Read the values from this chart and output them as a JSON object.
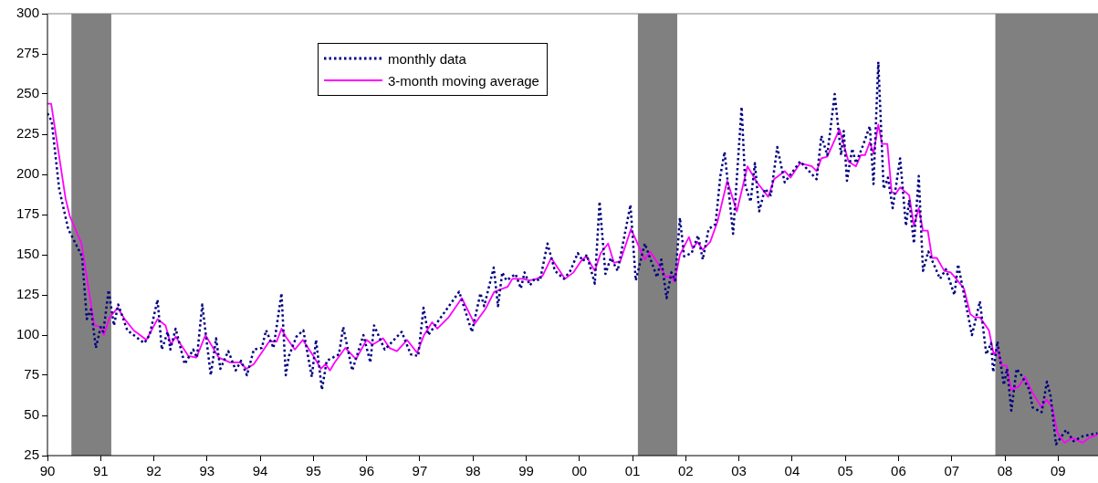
{
  "chart_data": {
    "type": "line",
    "xlim": [
      1990,
      2009.75
    ],
    "ylim": [
      25,
      300
    ],
    "xticks": [
      {
        "value": 1990,
        "label": "90"
      },
      {
        "value": 1991,
        "label": "91"
      },
      {
        "value": 1992,
        "label": "92"
      },
      {
        "value": 1993,
        "label": "93"
      },
      {
        "value": 1994,
        "label": "94"
      },
      {
        "value": 1995,
        "label": "95"
      },
      {
        "value": 1996,
        "label": "96"
      },
      {
        "value": 1997,
        "label": "97"
      },
      {
        "value": 1998,
        "label": "98"
      },
      {
        "value": 1999,
        "label": "99"
      },
      {
        "value": 2000,
        "label": "00"
      },
      {
        "value": 2001,
        "label": "01"
      },
      {
        "value": 2002,
        "label": "02"
      },
      {
        "value": 2003,
        "label": "03"
      },
      {
        "value": 2004,
        "label": "04"
      },
      {
        "value": 2005,
        "label": "05"
      },
      {
        "value": 2006,
        "label": "06"
      },
      {
        "value": 2007,
        "label": "07"
      },
      {
        "value": 2008,
        "label": "08"
      },
      {
        "value": 2009,
        "label": "09"
      }
    ],
    "yticks": [
      25,
      50,
      75,
      100,
      125,
      150,
      175,
      200,
      225,
      250,
      275,
      300
    ],
    "grid": false,
    "legend": "top",
    "marker": "none",
    "bands": [
      {
        "axis": "x",
        "from": 1990.45,
        "to": 1991.2,
        "color": "#808080"
      },
      {
        "axis": "x",
        "from": 2001.1,
        "to": 2001.84,
        "color": "#808080"
      },
      {
        "axis": "x",
        "from": 2007.82,
        "to": 2009.75,
        "color": "#808080"
      }
    ],
    "series": [
      {
        "name": "monthly data",
        "color": "#000080",
        "line_style": "dotted",
        "x": [
          1990.0,
          1990.08,
          1990.22,
          1990.39,
          1990.65,
          1990.74,
          1990.82,
          1990.91,
          1991.0,
          1991.05,
          1991.15,
          1991.25,
          1991.33,
          1991.5,
          1991.82,
          1991.92,
          1992.07,
          1992.15,
          1992.26,
          1992.31,
          1992.41,
          1992.58,
          1992.74,
          1992.81,
          1992.91,
          1993.07,
          1993.17,
          1993.25,
          1993.4,
          1993.54,
          1993.64,
          1993.75,
          1993.88,
          1994.03,
          1994.11,
          1994.25,
          1994.4,
          1994.48,
          1994.54,
          1994.68,
          1994.81,
          1994.97,
          1995.05,
          1995.16,
          1995.25,
          1995.48,
          1995.56,
          1995.73,
          1995.94,
          1996.07,
          1996.14,
          1996.34,
          1996.66,
          1996.83,
          1996.97,
          1997.07,
          1997.16,
          1997.46,
          1997.74,
          1997.98,
          1998.14,
          1998.21,
          1998.39,
          1998.47,
          1998.55,
          1998.63,
          1998.8,
          1998.9,
          1998.97,
          1999.07,
          1999.16,
          1999.26,
          1999.4,
          1999.54,
          1999.71,
          1999.83,
          1999.97,
          2000.07,
          2000.14,
          2000.29,
          2000.38,
          2000.49,
          2000.59,
          2000.72,
          2000.96,
          2001.06,
          2001.23,
          2001.46,
          2001.54,
          2001.64,
          2001.73,
          2001.8,
          2001.89,
          2001.97,
          2002.11,
          2002.23,
          2002.32,
          2002.43,
          2002.56,
          2002.65,
          2002.73,
          2002.89,
          2003.05,
          2003.12,
          2003.22,
          2003.3,
          2003.38,
          2003.49,
          2003.6,
          2003.72,
          2003.86,
          2004.15,
          2004.46,
          2004.55,
          2004.66,
          2004.8,
          2004.92,
          2004.97,
          2005.03,
          2005.13,
          2005.2,
          2005.32,
          2005.46,
          2005.53,
          2005.62,
          2005.72,
          2005.8,
          2005.89,
          2006.03,
          2006.14,
          2006.2,
          2006.29,
          2006.38,
          2006.46,
          2006.56,
          2006.78,
          2006.89,
          2007.05,
          2007.12,
          2007.38,
          2007.53,
          2007.65,
          2007.74,
          2007.78,
          2007.86,
          2007.98,
          2008.04,
          2008.12,
          2008.22,
          2008.31,
          2008.46,
          2008.52,
          2008.69,
          2008.79,
          2008.86,
          2008.96,
          2009.15,
          2009.29,
          2009.46,
          2009.74
        ],
        "values": [
          238,
          233,
          191,
          166,
          149,
          110,
          116,
          92,
          105,
          102,
          128,
          106,
          119,
          103,
          95,
          100,
          122,
          91,
          102,
          91,
          104,
          82,
          91,
          86,
          119,
          75,
          98,
          79,
          90,
          78,
          84,
          75,
          91,
          92,
          103,
          92,
          126,
          75,
          87,
          99,
          103,
          74,
          97,
          66,
          84,
          88,
          105,
          78,
          100,
          83,
          106,
          91,
          102,
          88,
          87,
          117,
          100,
          114,
          127,
          102,
          126,
          118,
          142,
          118,
          139,
          134,
          138,
          129,
          139,
          131,
          135,
          134,
          157,
          140,
          135,
          140,
          151,
          146,
          150,
          132,
          183,
          138,
          148,
          140,
          181,
          134,
          157,
          136,
          147,
          123,
          139,
          134,
          173,
          149,
          151,
          162,
          147,
          166,
          169,
          199,
          214,
          163,
          242,
          193,
          183,
          207,
          177,
          191,
          187,
          217,
          195,
          208,
          197,
          224,
          212,
          250,
          212,
          227,
          196,
          216,
          207,
          217,
          230,
          194,
          270,
          191,
          198,
          179,
          210,
          168,
          184,
          157,
          199,
          140,
          152,
          135,
          141,
          125,
          144,
          100,
          121,
          88,
          95,
          77,
          96,
          69,
          79,
          53,
          79,
          75,
          66,
          55,
          52,
          71,
          62,
          32,
          41,
          34,
          37,
          39
        ]
      },
      {
        "name": "3-month moving average",
        "color": "#ff00ff",
        "line_style": "solid",
        "x": [
          1990.0,
          1990.07,
          1990.34,
          1990.42,
          1990.64,
          1990.88,
          1991.0,
          1991.06,
          1991.17,
          1991.32,
          1991.45,
          1991.62,
          1991.86,
          1992.07,
          1992.22,
          1992.32,
          1992.41,
          1992.65,
          1992.8,
          1992.97,
          1993.22,
          1993.43,
          1993.62,
          1993.74,
          1993.88,
          1994.17,
          1994.31,
          1994.4,
          1994.48,
          1994.65,
          1994.8,
          1995.0,
          1995.14,
          1995.23,
          1995.31,
          1995.4,
          1995.6,
          1995.8,
          1996.0,
          1996.11,
          1996.31,
          1996.43,
          1996.57,
          1996.76,
          1996.95,
          1997.08,
          1997.23,
          1997.33,
          1997.54,
          1997.79,
          1998.03,
          1998.23,
          1998.4,
          1998.65,
          1998.74,
          1998.94,
          1999.06,
          1999.2,
          1999.31,
          1999.47,
          1999.73,
          1999.89,
          2000.03,
          2000.13,
          2000.29,
          2000.4,
          2000.54,
          2000.65,
          2000.77,
          2000.97,
          2001.23,
          2001.33,
          2001.49,
          2001.63,
          2001.72,
          2001.79,
          2001.89,
          2002.06,
          2002.13,
          2002.22,
          2002.32,
          2002.46,
          2002.6,
          2002.78,
          2002.96,
          2003.16,
          2003.34,
          2003.55,
          2003.66,
          2003.86,
          2003.97,
          2004.15,
          2004.37,
          2004.46,
          2004.55,
          2004.66,
          2004.89,
          2005.06,
          2005.2,
          2005.29,
          2005.37,
          2005.46,
          2005.53,
          2005.62,
          2005.69,
          2005.79,
          2005.87,
          2005.95,
          2006.03,
          2006.2,
          2006.29,
          2006.38,
          2006.46,
          2006.55,
          2006.63,
          2006.72,
          2006.86,
          2006.98,
          2007.06,
          2007.23,
          2007.35,
          2007.43,
          2007.53,
          2007.7,
          2007.79,
          2007.86,
          2007.95,
          2008.03,
          2008.12,
          2008.26,
          2008.38,
          2008.52,
          2008.69,
          2008.78,
          2008.89,
          2008.99,
          2009.12,
          2009.26,
          2009.46,
          2009.58,
          2009.74
        ],
        "values": [
          244,
          244,
          185,
          174,
          157,
          106,
          105,
          100,
          111,
          117,
          110,
          103,
          97,
          110,
          106,
          94,
          99,
          87,
          86,
          100,
          86,
          83,
          83,
          79,
          82,
          96,
          96,
          104,
          99,
          91,
          97,
          87,
          79,
          82,
          78,
          83,
          92,
          85,
          97,
          94,
          98,
          92,
          90,
          97,
          89,
          100,
          108,
          104,
          111,
          123,
          107,
          116,
          127,
          130,
          135,
          135,
          134,
          135,
          137,
          148,
          135,
          139,
          146,
          149,
          140,
          151,
          157,
          145,
          146,
          166,
          147,
          152,
          144,
          136,
          137,
          133,
          150,
          161,
          154,
          158,
          153,
          158,
          171,
          196,
          177,
          205,
          195,
          186,
          197,
          202,
          198,
          207,
          205,
          202,
          210,
          211,
          228,
          208,
          205,
          212,
          212,
          220,
          213,
          231,
          219,
          219,
          189,
          188,
          192,
          187,
          168,
          179,
          165,
          165,
          148,
          148,
          140,
          139,
          136,
          129,
          113,
          111,
          111,
          103,
          88,
          91,
          81,
          81,
          66,
          68,
          74,
          64,
          55,
          60,
          55,
          39,
          33,
          36,
          33,
          36,
          38
        ]
      }
    ]
  }
}
